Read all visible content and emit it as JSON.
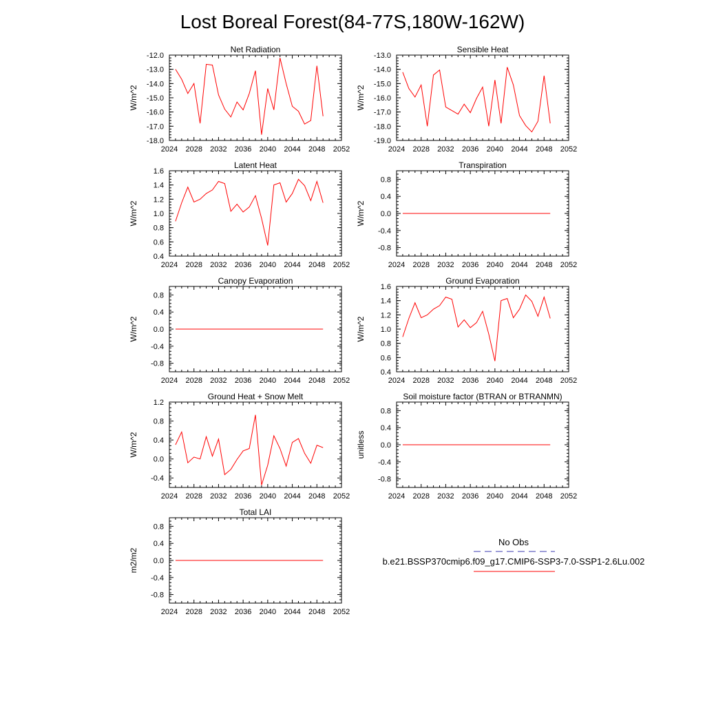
{
  "title": "Lost Boreal Forest(84-77S,180W-162W)",
  "colors": {
    "model": "#ff0000",
    "obs": "#3b3bb0",
    "axis": "#000000"
  },
  "legend": {
    "obs_label": "No Obs",
    "model_label": "b.e21.BSSP370cmip6.f09_g17.CMIP6-SSP3-7.0-SSP1-2.6Lu.002"
  },
  "chart_data": [
    {
      "type": "line",
      "title": "Net Radiation",
      "ylabel": "W/m^2",
      "xlim": [
        2024,
        2052
      ],
      "xticks": [
        2024,
        2028,
        2032,
        2036,
        2040,
        2044,
        2048,
        2052
      ],
      "ylim": [
        -18,
        -12
      ],
      "yticks": [
        -18,
        -17,
        -16,
        -15,
        -14,
        -13,
        -12
      ],
      "ytick_labels": [
        "-18.0",
        "-17.0",
        "-16.0",
        "-15.0",
        "-14.0",
        "-13.0",
        "-12.0"
      ],
      "x": [
        2025,
        2026,
        2027,
        2028,
        2029,
        2030,
        2031,
        2032,
        2033,
        2034,
        2035,
        2036,
        2037,
        2038,
        2039,
        2040,
        2041,
        2042,
        2043,
        2044,
        2045,
        2046,
        2047,
        2048,
        2049
      ],
      "y": [
        -13.0,
        -13.7,
        -14.7,
        -14.0,
        -16.8,
        -12.65,
        -12.7,
        -14.8,
        -15.8,
        -16.35,
        -15.3,
        -15.85,
        -14.7,
        -13.1,
        -17.6,
        -14.35,
        -15.85,
        -12.2,
        -14.0,
        -15.6,
        -15.95,
        -16.85,
        -16.6,
        -12.75,
        -16.3
      ],
      "grid": false
    },
    {
      "type": "line",
      "title": "Sensible Heat",
      "ylabel": "W/m^2",
      "xlim": [
        2024,
        2052
      ],
      "xticks": [
        2024,
        2028,
        2032,
        2036,
        2040,
        2044,
        2048,
        2052
      ],
      "ylim": [
        -19,
        -13
      ],
      "yticks": [
        -19,
        -18,
        -17,
        -16,
        -15,
        -14,
        -13
      ],
      "ytick_labels": [
        "-19.0",
        "-18.0",
        "-17.0",
        "-16.0",
        "-15.0",
        "-14.0",
        "-13.0"
      ],
      "x": [
        2025,
        2026,
        2027,
        2028,
        2029,
        2030,
        2031,
        2032,
        2033,
        2034,
        2035,
        2036,
        2037,
        2038,
        2039,
        2040,
        2041,
        2042,
        2043,
        2044,
        2045,
        2046,
        2047,
        2048,
        2049
      ],
      "y": [
        -14.2,
        -15.35,
        -15.95,
        -15.1,
        -18.0,
        -14.4,
        -14.05,
        -16.65,
        -16.9,
        -17.15,
        -16.45,
        -17.05,
        -16.05,
        -15.25,
        -18.0,
        -14.75,
        -17.8,
        -13.85,
        -15.1,
        -17.25,
        -17.95,
        -18.4,
        -17.65,
        -14.45,
        -17.8
      ],
      "grid": false
    },
    {
      "type": "line",
      "title": "Latent Heat",
      "ylabel": "W/m^2",
      "xlim": [
        2024,
        2052
      ],
      "xticks": [
        2024,
        2028,
        2032,
        2036,
        2040,
        2044,
        2048,
        2052
      ],
      "ylim": [
        0.4,
        1.6
      ],
      "yticks": [
        0.4,
        0.6,
        0.8,
        1.0,
        1.2,
        1.4,
        1.6
      ],
      "ytick_labels": [
        "0.4",
        "0.6",
        "0.8",
        "1.0",
        "1.2",
        "1.4",
        "1.6"
      ],
      "x": [
        2025,
        2026,
        2027,
        2028,
        2029,
        2030,
        2031,
        2032,
        2033,
        2034,
        2035,
        2036,
        2037,
        2038,
        2039,
        2040,
        2041,
        2042,
        2043,
        2044,
        2045,
        2046,
        2047,
        2048,
        2049
      ],
      "y": [
        0.89,
        1.15,
        1.37,
        1.16,
        1.2,
        1.28,
        1.33,
        1.45,
        1.42,
        1.03,
        1.13,
        1.02,
        1.09,
        1.25,
        0.93,
        0.55,
        1.4,
        1.43,
        1.16,
        1.28,
        1.48,
        1.39,
        1.18,
        1.45,
        1.15
      ],
      "grid": false
    },
    {
      "type": "line",
      "title": "Transpiration",
      "ylabel": "W/m^2",
      "xlim": [
        2024,
        2052
      ],
      "xticks": [
        2024,
        2028,
        2032,
        2036,
        2040,
        2044,
        2048,
        2052
      ],
      "ylim": [
        -1.0,
        1.0
      ],
      "yticks": [
        -0.8,
        -0.4,
        0.0,
        0.4,
        0.8
      ],
      "ytick_labels": [
        "-0.8",
        "-0.4",
        "0.0",
        "0.4",
        "0.8"
      ],
      "x": [
        2025,
        2049
      ],
      "y": [
        0.0,
        0.0
      ],
      "grid": false
    },
    {
      "type": "line",
      "title": "Canopy Evaporation",
      "ylabel": "W/m^2",
      "xlim": [
        2024,
        2052
      ],
      "xticks": [
        2024,
        2028,
        2032,
        2036,
        2040,
        2044,
        2048,
        2052
      ],
      "ylim": [
        -1.0,
        1.0
      ],
      "yticks": [
        -0.8,
        -0.4,
        0.0,
        0.4,
        0.8
      ],
      "ytick_labels": [
        "-0.8",
        "-0.4",
        "0.0",
        "0.4",
        "0.8"
      ],
      "x": [
        2025,
        2049
      ],
      "y": [
        0.0,
        0.0
      ],
      "grid": false
    },
    {
      "type": "line",
      "title": "Ground Evaporation",
      "ylabel": "W/m^2",
      "xlim": [
        2024,
        2052
      ],
      "xticks": [
        2024,
        2028,
        2032,
        2036,
        2040,
        2044,
        2048,
        2052
      ],
      "ylim": [
        0.4,
        1.6
      ],
      "yticks": [
        0.4,
        0.6,
        0.8,
        1.0,
        1.2,
        1.4,
        1.6
      ],
      "ytick_labels": [
        "0.4",
        "0.6",
        "0.8",
        "1.0",
        "1.2",
        "1.4",
        "1.6"
      ],
      "x": [
        2025,
        2026,
        2027,
        2028,
        2029,
        2030,
        2031,
        2032,
        2033,
        2034,
        2035,
        2036,
        2037,
        2038,
        2039,
        2040,
        2041,
        2042,
        2043,
        2044,
        2045,
        2046,
        2047,
        2048,
        2049
      ],
      "y": [
        0.89,
        1.15,
        1.37,
        1.16,
        1.2,
        1.28,
        1.33,
        1.45,
        1.42,
        1.03,
        1.13,
        1.02,
        1.09,
        1.25,
        0.93,
        0.55,
        1.4,
        1.43,
        1.16,
        1.28,
        1.48,
        1.39,
        1.18,
        1.45,
        1.15
      ],
      "grid": false
    },
    {
      "type": "line",
      "title": "Ground Heat + Snow Melt",
      "ylabel": "W/m^2",
      "xlim": [
        2024,
        2052
      ],
      "xticks": [
        2024,
        2028,
        2032,
        2036,
        2040,
        2044,
        2048,
        2052
      ],
      "ylim": [
        -0.6,
        1.2
      ],
      "yticks": [
        -0.4,
        0.0,
        0.4,
        0.8,
        1.2
      ],
      "ytick_labels": [
        "-0.4",
        "0.0",
        "0.4",
        "0.8",
        "1.2"
      ],
      "x": [
        2025,
        2026,
        2027,
        2028,
        2029,
        2030,
        2031,
        2032,
        2033,
        2034,
        2035,
        2036,
        2037,
        2038,
        2039,
        2040,
        2041,
        2042,
        2043,
        2044,
        2045,
        2046,
        2047,
        2048,
        2049
      ],
      "y": [
        0.3,
        0.57,
        -0.08,
        0.04,
        0.0,
        0.47,
        0.06,
        0.42,
        -0.33,
        -0.22,
        -0.01,
        0.17,
        0.22,
        0.93,
        -0.55,
        -0.13,
        0.49,
        0.22,
        -0.15,
        0.35,
        0.43,
        0.12,
        -0.09,
        0.29,
        0.24
      ],
      "grid": false
    },
    {
      "type": "line",
      "title": "Soil moisture factor (BTRAN or BTRANMN)",
      "ylabel": "unitless",
      "xlim": [
        2024,
        2052
      ],
      "xticks": [
        2024,
        2028,
        2032,
        2036,
        2040,
        2044,
        2048,
        2052
      ],
      "ylim": [
        -1.0,
        1.0
      ],
      "yticks": [
        -0.8,
        -0.4,
        0.0,
        0.4,
        0.8
      ],
      "ytick_labels": [
        "-0.8",
        "-0.4",
        "0.0",
        "0.4",
        "0.8"
      ],
      "x": [
        2025,
        2049
      ],
      "y": [
        0.0,
        0.0
      ],
      "grid": false
    },
    {
      "type": "line",
      "title": "Total LAI",
      "ylabel": "m2/m2",
      "xlim": [
        2024,
        2052
      ],
      "xticks": [
        2024,
        2028,
        2032,
        2036,
        2040,
        2044,
        2048,
        2052
      ],
      "ylim": [
        -1.0,
        1.0
      ],
      "yticks": [
        -0.8,
        -0.4,
        0.0,
        0.4,
        0.8
      ],
      "ytick_labels": [
        "-0.8",
        "-0.4",
        "0.0",
        "0.4",
        "0.8"
      ],
      "x": [
        2025,
        2049
      ],
      "y": [
        0.0,
        0.0
      ],
      "grid": false
    }
  ]
}
